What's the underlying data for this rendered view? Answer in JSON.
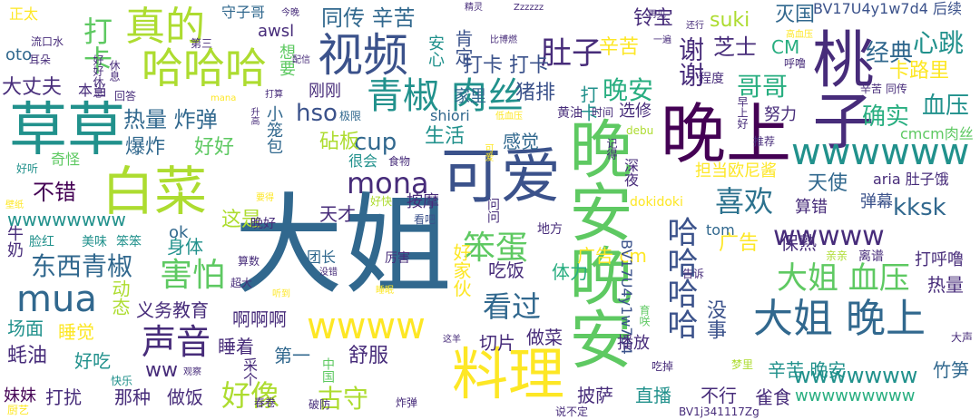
{
  "palette": {
    "dark_purple": "#440154",
    "purple": "#472c7a",
    "indigo": "#3b528b",
    "blue": "#31688e",
    "teal_blue": "#2c728e",
    "teal": "#21918c",
    "green_teal": "#28ae80",
    "green": "#5ec962",
    "light_green": "#addc30",
    "yellow": "#fde725"
  },
  "words": [
    "大姐",
    "晚安晚安",
    "晚上",
    "草草",
    "桃子",
    "可爱",
    "白菜",
    "料理",
    "视频",
    "哈哈哈",
    "真的",
    "青椒 肉丝",
    "大姐 晚上",
    "谢谢",
    "mua",
    "声音",
    "wwwwww",
    "哈哈哈哈",
    "大姐 血压",
    "东西青椒",
    "害怕",
    "笨蛋",
    "喜欢",
    "wwww",
    "mona",
    "hso",
    "cup",
    "肚子",
    "打卡",
    "看过",
    "wwwww",
    "kksk",
    "好像",
    "古守",
    "心跳",
    "哥哥",
    "晚安",
    "确实",
    "经典",
    "血压",
    "芝士",
    "卡路里",
    "铃宝",
    "同传 辛苦",
    "辛苦",
    "打卡 打卡",
    "打卡",
    "suki",
    "灭国",
    "BV17U4y1w7d4 后续",
    "CM",
    "wwwwwww",
    "wwwwwwww",
    "不错",
    "热量 炸弹",
    "爆炸",
    "好好",
    "生活",
    "感觉",
    "砧板",
    "猪排",
    "选修",
    "努力",
    "cmcm肉丝",
    "天使",
    "弹幕",
    "aria 肚子饿",
    "算错",
    "担当欧尼酱",
    "这是",
    "天才",
    "按摩",
    "广告 cm",
    "广告",
    "保熟",
    "打呼噜",
    "热量",
    "BV17U4y1w7d4",
    "吃饭",
    "体力",
    "好家伙",
    "tom",
    "身体",
    "ok",
    "团长",
    "动态",
    "义务教育",
    "啊啊啊",
    "没事",
    "睡着",
    "第一",
    "舒服",
    "切片",
    "做菜",
    "蚝油",
    "好吃",
    "打扰",
    "那种",
    "做饭",
    "采个",
    "中国",
    "场面",
    "睡觉",
    "妹妹",
    "竹笋",
    "不行",
    "雀食",
    "披萨",
    "直播",
    "播放",
    "辛苦 晚安",
    "wwwwwwwww",
    "ww",
    "大丈夫",
    "oto",
    "正太",
    "守子哥",
    "awsl",
    "想要",
    "安心",
    "肯定",
    "小笼包",
    "刚刚",
    "shiori",
    "很会",
    "家里",
    "本当",
    "奇怪",
    "牛奶",
    "脸红",
    "美味",
    "笨笨",
    "好快",
    "晚好",
    "看吧",
    "问问",
    "地方",
    "dokidoki",
    "深夜",
    "时间",
    "早上好",
    "推荐",
    "记得",
    "黄油",
    "辛苦 同传",
    "程度",
    "呼噜",
    "高血压",
    "离谱",
    "亲亲",
    "大声",
    "梦里",
    "吃掉",
    "育咲",
    "说不定",
    "BV1j341117Zg",
    "厨艺",
    "好听",
    "流口水",
    "耳朵",
    "休息",
    "好好休息",
    "今晚",
    "配信",
    "打算",
    "mana",
    "回答",
    "升高",
    "超大",
    "听到",
    "没错",
    "睡眠",
    "厉害",
    "算数",
    "告诉",
    "食物",
    "可爱",
    "低血压",
    "极限",
    "debu",
    "Zzzzzz",
    "精灵",
    "比博燃",
    "还行",
    "再见",
    "一遍",
    "观察",
    "快乐",
    "春卷",
    "破防",
    "炸弹",
    "壁纸",
    "要得",
    "这羊",
    "第三"
  ]
}
